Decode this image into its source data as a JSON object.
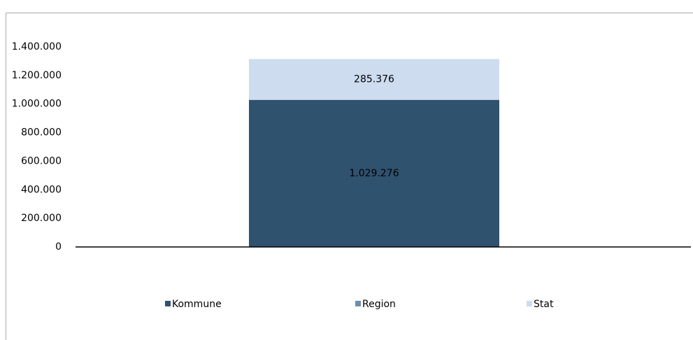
{
  "chart_data": {
    "type": "stacked-bar",
    "categories": [
      null
    ],
    "series": [
      {
        "name": "Kommune",
        "color": "#2f526e",
        "values": [
          1029276
        ],
        "value_labels": [
          "1.029.276"
        ]
      },
      {
        "name": "Region",
        "color": "#6f8faa",
        "values": [
          0
        ]
      },
      {
        "name": "Stat",
        "color": "#cddcef",
        "values": [
          285376
        ],
        "value_labels": [
          "285.376"
        ]
      }
    ],
    "ylim": [
      0,
      1400000
    ],
    "yticks": [
      0,
      {
        "value": 200000,
        "label": "200.000"
      },
      {
        "value": 400000,
        "label": "400.000"
      },
      {
        "value": 600000,
        "label": "600.000"
      },
      {
        "value": 800000,
        "label": "800.000"
      },
      {
        "value": 1000000,
        "label": "1.000.000"
      },
      {
        "value": 1200000,
        "label": "1.200.000"
      },
      {
        "value": 1400000,
        "label": "1.400.000"
      }
    ],
    "legend": "bottom"
  }
}
